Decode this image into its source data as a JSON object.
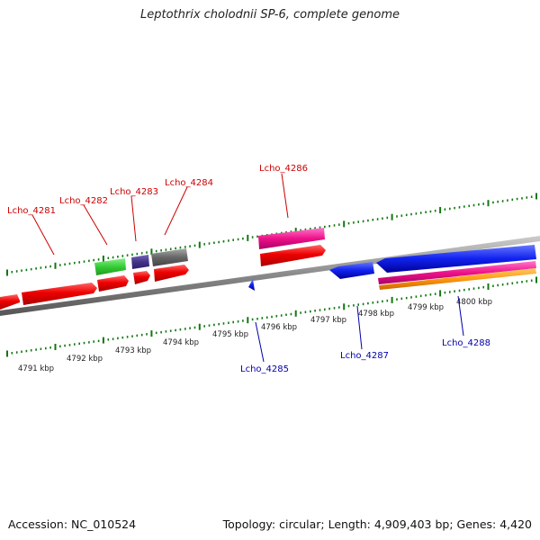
{
  "header": {
    "title": "Leptothrix cholodnii SP-6, complete genome"
  },
  "footer": {
    "accession": "Accession: NC_010524",
    "summary": "Topology: circular; Length: 4,909,403 bp; Genes: 4,420"
  },
  "colors": {
    "forward_label": "#cc0000",
    "reverse_label": "#0000aa",
    "ticks": "#117711",
    "backbone": "#808080"
  },
  "scale_labels": [
    "4791 kbp",
    "4792 kbp",
    "4793 kbp",
    "4794 kbp",
    "4795 kbp",
    "4796 kbp",
    "4797 kbp",
    "4798 kbp",
    "4799 kbp",
    "4800 kbp"
  ],
  "gene_labels": {
    "forward": [
      "Lcho_4281",
      "Lcho_4282",
      "Lcho_4283",
      "Lcho_4284",
      "Lcho_4286"
    ],
    "reverse": [
      "Lcho_4285",
      "Lcho_4287",
      "Lcho_4288"
    ]
  },
  "feature_colors": {
    "cds": "#ee1111",
    "green": "#33cc33",
    "purple": "#443388",
    "gray": "#666666",
    "pink": "#ee1188",
    "blue": "#1122ee",
    "orange": "#ff9911"
  }
}
